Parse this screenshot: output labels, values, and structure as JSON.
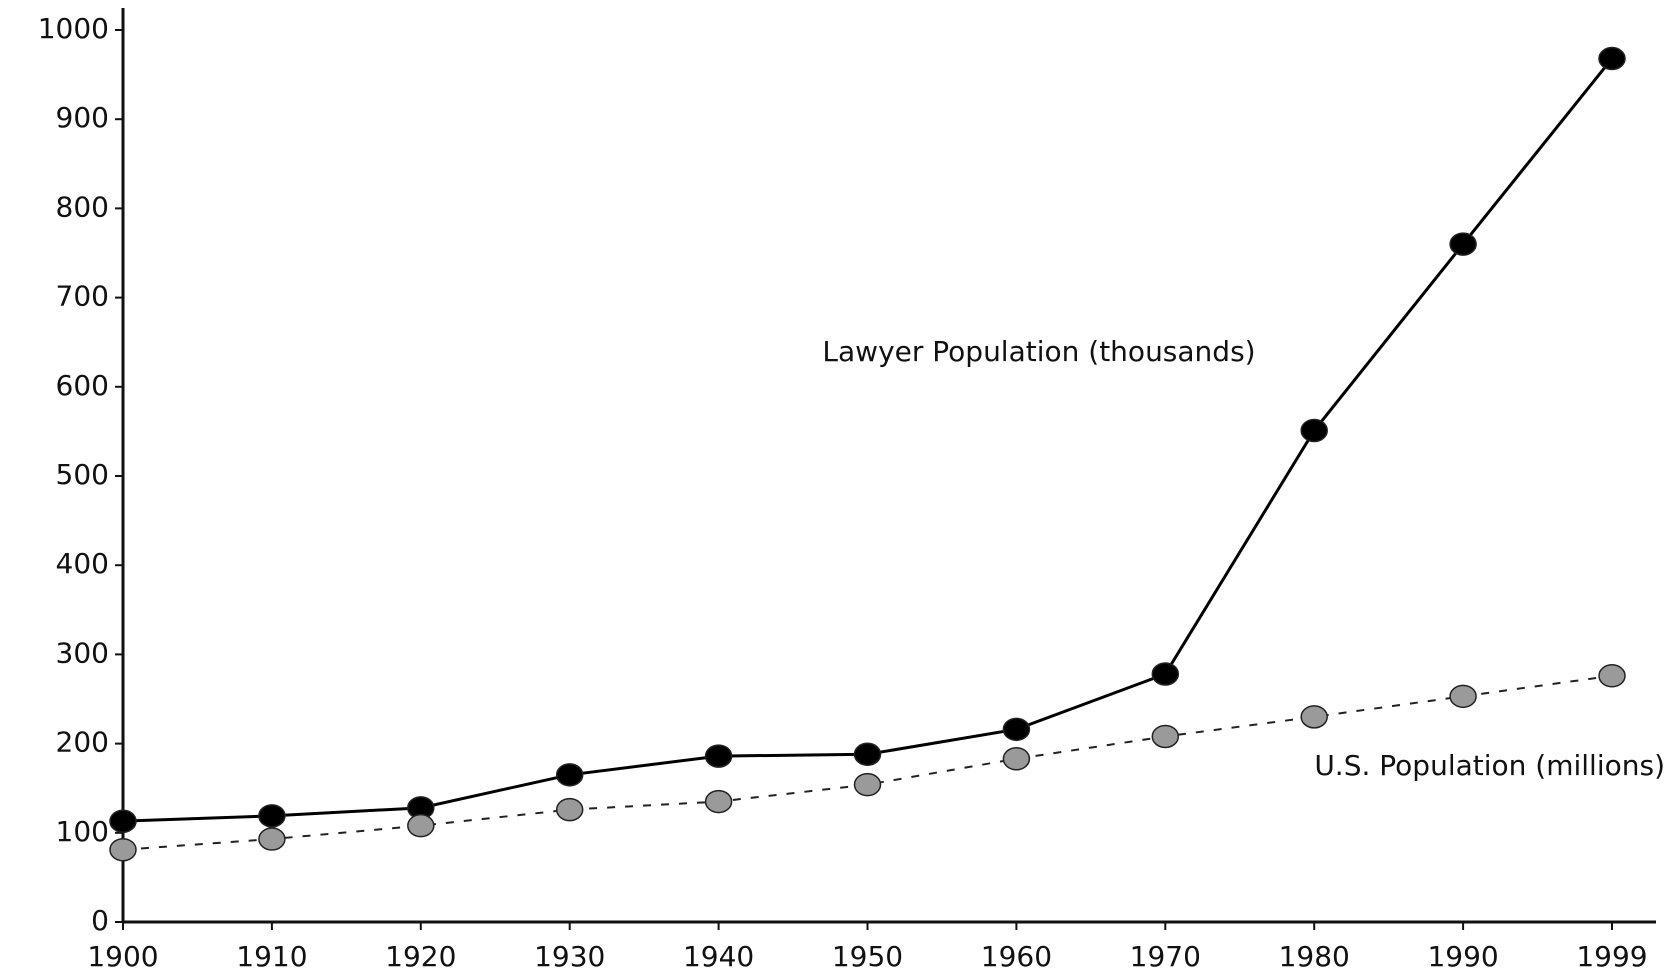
{
  "chart_data": {
    "type": "line",
    "categories": [
      "1900",
      "1910",
      "1920",
      "1930",
      "1940",
      "1950",
      "1960",
      "1970",
      "1980",
      "1990",
      "1999"
    ],
    "series": [
      {
        "name": "Lawyer Population (thousands)",
        "color": "#000000",
        "line_style": "solid",
        "values": [
          113,
          119,
          128,
          165,
          186,
          188,
          216,
          278,
          551,
          760,
          968
        ]
      },
      {
        "name": "U.S. Population (millions)",
        "color": "#9a9a9a",
        "line_style": "dashed",
        "values": [
          81,
          93,
          108,
          126,
          135,
          154,
          183,
          208,
          230,
          253,
          276
        ]
      }
    ],
    "ylim": [
      0,
      1000
    ],
    "yticks": [
      0,
      100,
      200,
      300,
      400,
      500,
      600,
      700,
      800,
      900,
      1000
    ],
    "grid": false
  }
}
